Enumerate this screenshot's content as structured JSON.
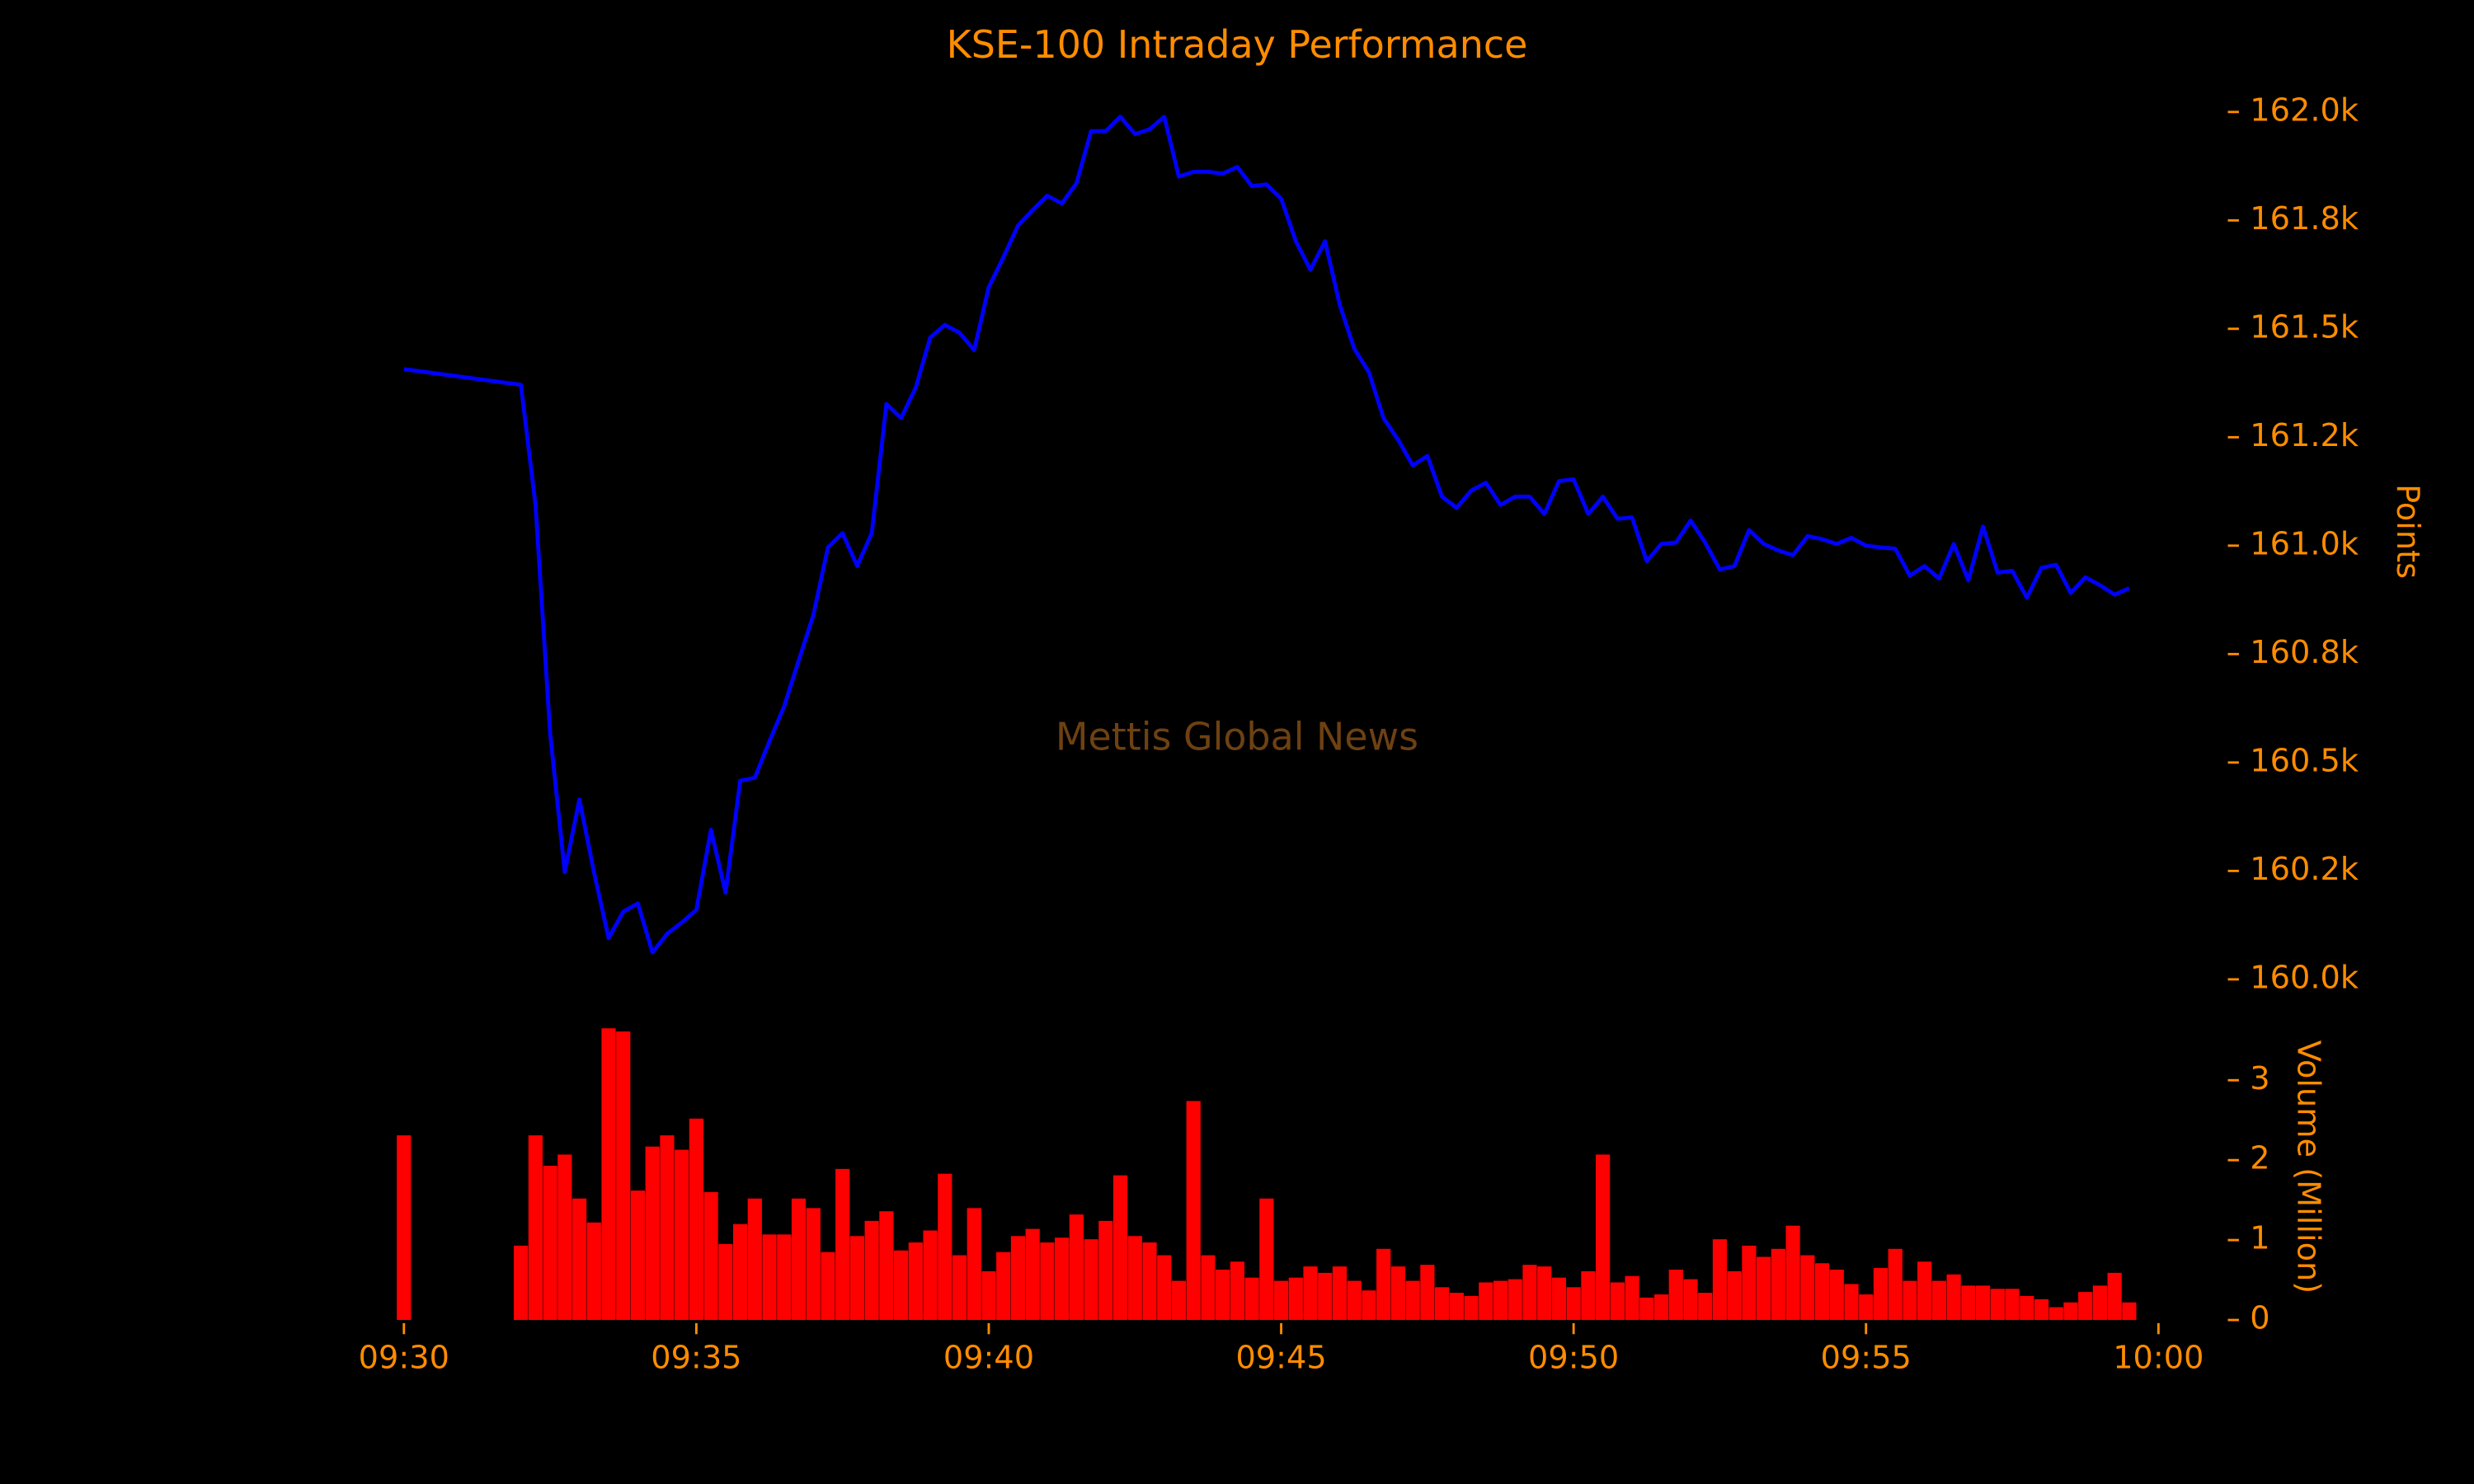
{
  "chart_data": {
    "type": "line",
    "title": "KSE-100 Intraday Performance",
    "annotation": "Mettis Global News",
    "ylabel": "Points",
    "y2label": "Volume (Million)",
    "x": [
      "09:30:00",
      "09:32:00",
      "09:32:15",
      "09:32:30",
      "09:32:45",
      "09:33:00",
      "09:33:15",
      "09:33:30",
      "09:33:45",
      "09:34:00",
      "09:34:15",
      "09:34:30",
      "09:34:45",
      "09:35:00",
      "09:35:15",
      "09:35:30",
      "09:35:45",
      "09:36:00",
      "09:36:15",
      "09:36:30",
      "09:36:45",
      "09:37:00",
      "09:37:15",
      "09:37:30",
      "09:37:45",
      "09:38:00",
      "09:38:15",
      "09:38:30",
      "09:38:45",
      "09:39:00",
      "09:39:15",
      "09:39:30",
      "09:39:45",
      "09:40:00",
      "09:40:15",
      "09:40:30",
      "09:40:45",
      "09:41:00",
      "09:41:15",
      "09:41:30",
      "09:41:45",
      "09:42:00",
      "09:42:15",
      "09:42:30",
      "09:42:45",
      "09:43:00",
      "09:43:15",
      "09:43:30",
      "09:43:45",
      "09:44:00",
      "09:44:15",
      "09:44:30",
      "09:44:45",
      "09:45:00",
      "09:45:15",
      "09:45:30",
      "09:45:45",
      "09:46:00",
      "09:46:15",
      "09:46:30",
      "09:46:45",
      "09:47:00",
      "09:47:15",
      "09:47:30",
      "09:47:45",
      "09:48:00",
      "09:48:15",
      "09:48:30",
      "09:48:45",
      "09:49:00",
      "09:49:15",
      "09:49:30",
      "09:49:45",
      "09:50:00",
      "09:50:15",
      "09:50:30",
      "09:50:45",
      "09:51:00",
      "09:51:15",
      "09:51:30",
      "09:51:45",
      "09:52:00",
      "09:52:15",
      "09:52:30",
      "09:52:45",
      "09:53:00",
      "09:53:15",
      "09:53:30",
      "09:53:45",
      "09:54:00",
      "09:54:15",
      "09:54:30",
      "09:54:45",
      "09:55:00",
      "09:55:15",
      "09:55:30",
      "09:55:45",
      "09:56:00",
      "09:56:15",
      "09:56:30",
      "09:56:45",
      "09:57:00",
      "09:57:15",
      "09:57:30",
      "09:57:45",
      "09:58:00",
      "09:58:15",
      "09:58:30",
      "09:58:45",
      "09:59:00",
      "09:59:15",
      "09:59:30"
    ],
    "xlim": [
      "09:30",
      "10:00"
    ],
    "xticks": [
      "09:30",
      "09:35",
      "09:40",
      "09:45",
      "09:50",
      "09:55",
      "10:00"
    ],
    "ylim": [
      159950,
      162050
    ],
    "yticks": [
      {
        "value": 160000,
        "label": "160.0k"
      },
      {
        "value": 160250,
        "label": "160.2k"
      },
      {
        "value": 160500,
        "label": "160.5k"
      },
      {
        "value": 160750,
        "label": "160.8k"
      },
      {
        "value": 161000,
        "label": "161.0k"
      },
      {
        "value": 161250,
        "label": "161.2k"
      },
      {
        "value": 161500,
        "label": "161.5k"
      },
      {
        "value": 161750,
        "label": "161.8k"
      },
      {
        "value": 162000,
        "label": "162.0k"
      }
    ],
    "y2lim": [
      0,
      3.7
    ],
    "y2ticks": [
      0,
      1,
      2,
      3
    ],
    "series": [
      {
        "color": "#0000ff",
        "values": [
          161407,
          161371,
          161094,
          160567,
          160247,
          160415,
          160247,
          160095,
          160156,
          160175,
          160062,
          160105,
          160131,
          160160,
          160345,
          160200,
          160458,
          160465,
          160549,
          160629,
          160735,
          160840,
          160996,
          161029,
          160953,
          161029,
          161327,
          161294,
          161364,
          161480,
          161509,
          161491,
          161451,
          161596,
          161665,
          161738,
          161774,
          161807,
          161789,
          161836,
          161956,
          161956,
          161989,
          161949,
          161960,
          161989,
          161851,
          161862,
          161862,
          161858,
          161873,
          161829,
          161833,
          161800,
          161702,
          161636,
          161702,
          161556,
          161454,
          161400,
          161294,
          161244,
          161185,
          161207,
          161113,
          161087,
          161127,
          161145,
          161094,
          161113,
          161113,
          161073,
          161149,
          161153,
          161073,
          161113,
          161062,
          161065,
          160964,
          161004,
          161007,
          161058,
          161007,
          160945,
          160953,
          161036,
          161004,
          160989,
          160978,
          161022,
          161015,
          161004,
          161018,
          161000,
          160996,
          160993,
          160931,
          160953,
          160924,
          161004,
          160920,
          161044,
          160938,
          160942,
          160880,
          160949,
          160956,
          160891,
          160927,
          160909,
          160887,
          160902
        ]
      },
      {
        "type": "bar",
        "axis": "y2",
        "color": "#ff0000",
        "values": [
          2.31,
          0.93,
          2.31,
          1.93,
          2.07,
          1.52,
          1.22,
          3.65,
          3.61,
          1.62,
          2.17,
          2.31,
          2.13,
          2.52,
          1.6,
          0.95,
          1.2,
          1.52,
          1.07,
          1.07,
          1.52,
          1.4,
          0.85,
          1.89,
          1.05,
          1.24,
          1.36,
          0.87,
          0.97,
          1.12,
          1.83,
          0.81,
          1.4,
          0.61,
          0.85,
          1.05,
          1.14,
          0.97,
          1.03,
          1.32,
          1.01,
          1.24,
          1.81,
          1.05,
          0.97,
          0.81,
          0.49,
          2.74,
          0.81,
          0.63,
          0.73,
          0.53,
          1.52,
          0.49,
          0.53,
          0.67,
          0.59,
          0.67,
          0.49,
          0.37,
          0.89,
          0.67,
          0.49,
          0.69,
          0.41,
          0.34,
          0.3,
          0.47,
          0.49,
          0.51,
          0.69,
          0.67,
          0.53,
          0.41,
          0.61,
          2.07,
          0.47,
          0.55,
          0.28,
          0.32,
          0.63,
          0.51,
          0.34,
          1.01,
          0.61,
          0.93,
          0.79,
          0.89,
          1.18,
          0.81,
          0.71,
          0.63,
          0.45,
          0.32,
          0.65,
          0.89,
          0.49,
          0.73,
          0.49,
          0.57,
          0.43,
          0.43,
          0.39,
          0.39,
          0.3,
          0.26,
          0.16,
          0.22,
          0.35,
          0.43,
          0.59,
          0.22
        ]
      }
    ]
  }
}
